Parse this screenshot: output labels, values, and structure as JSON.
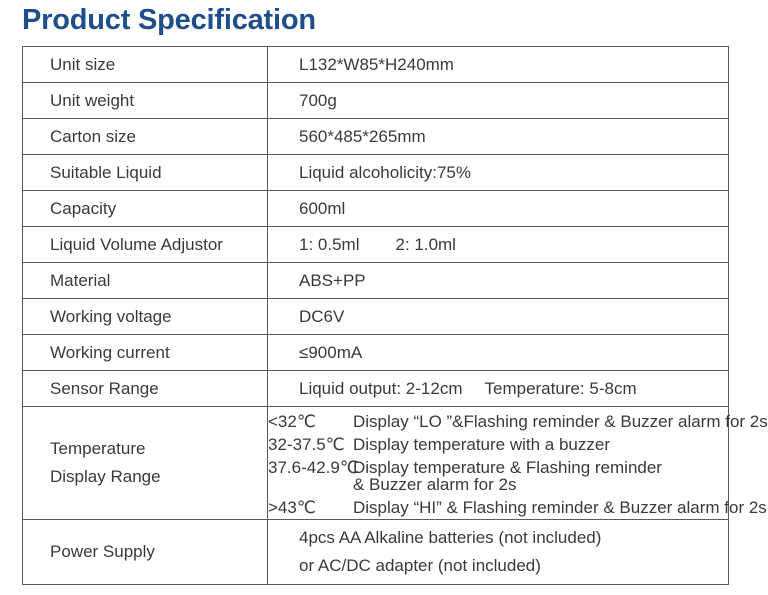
{
  "title": "Product Specification",
  "rows": [
    {
      "label": "Unit size",
      "value": "L132*W85*H240mm"
    },
    {
      "label": "Unit weight",
      "value": "700g"
    },
    {
      "label": "Carton size",
      "value": "560*485*265mm"
    },
    {
      "label": "Suitable Liquid",
      "value": "Liquid alcoholicity:75%"
    },
    {
      "label": "Capacity",
      "value": "600ml"
    },
    {
      "label": "Liquid Volume Adjustor",
      "value_a": "1:  0.5ml",
      "value_b": "2:  1.0ml"
    },
    {
      "label": "Material",
      "value": "ABS+PP"
    },
    {
      "label": "Working voltage",
      "value": "DC6V"
    },
    {
      "label": "Working current",
      "value": "≤900mA"
    },
    {
      "label": "Sensor Range",
      "value_a": "Liquid output: 2-12cm",
      "value_b": "Temperature: 5-8cm"
    }
  ],
  "temperature": {
    "label_line1": "Temperature",
    "label_line2": "Display Range",
    "entries": [
      {
        "range": "<32℃",
        "desc": "Display “LO ”&Flashing reminder & Buzzer alarm for 2s"
      },
      {
        "range": "32-37.5℃",
        "desc": "Display temperature with a buzzer"
      },
      {
        "range": "37.6-42.9℃",
        "desc": "Display temperature & Flashing reminder",
        "desc2": "& Buzzer alarm for 2s"
      },
      {
        "range": ">43℃",
        "desc": "Display “HI” & Flashing reminder & Buzzer alarm  for 2s"
      }
    ]
  },
  "power": {
    "label": "Power Supply",
    "line1": "4pcs AA Alkaline batteries (not included)",
    "line2": "or AC/DC adapter (not included)"
  }
}
